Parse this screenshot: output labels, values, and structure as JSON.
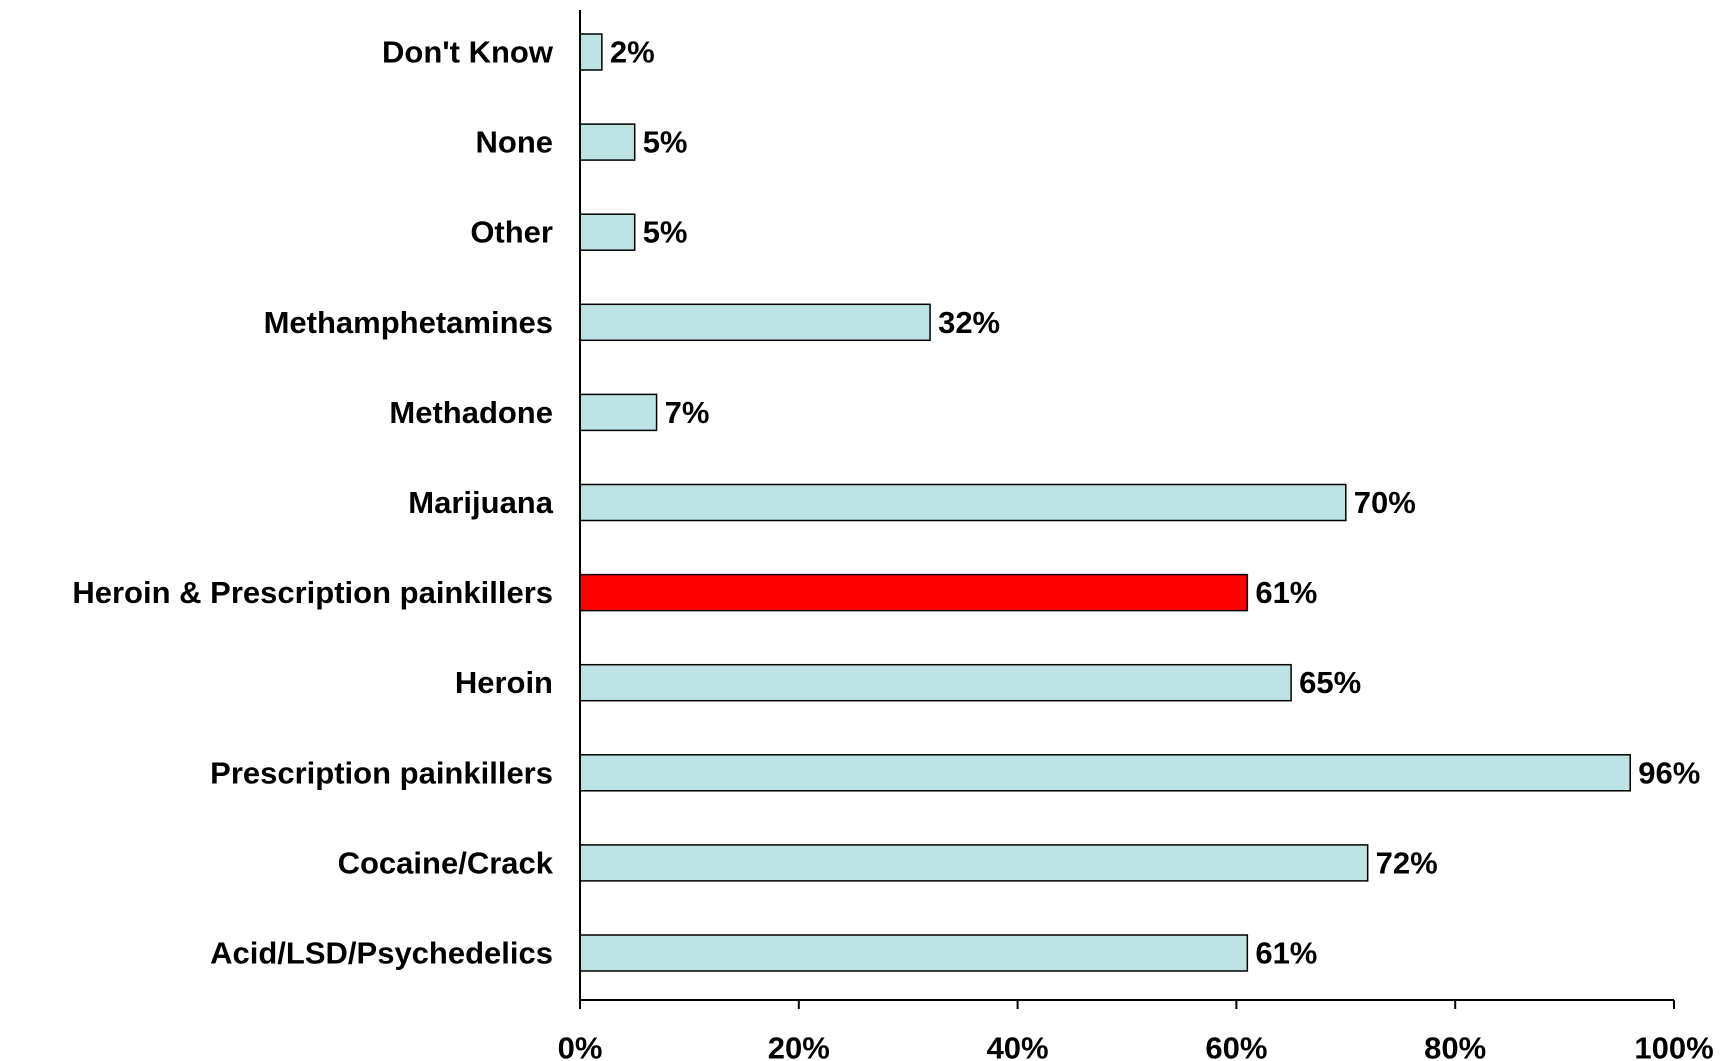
{
  "chart_data": {
    "type": "bar",
    "orientation": "horizontal",
    "title": "",
    "xlabel": "",
    "ylabel": "",
    "categories": [
      "Don't Know",
      "None",
      "Other",
      "Methamphetamines",
      "Methadone",
      "Marijuana",
      "Heroin & Prescription painkillers",
      "Heroin",
      "Prescription painkillers",
      "Cocaine/Crack",
      "Acid/LSD/Psychedelics"
    ],
    "values": [
      2,
      5,
      5,
      32,
      7,
      70,
      61,
      65,
      96,
      72,
      61
    ],
    "value_labels": [
      "2%",
      "5%",
      "5%",
      "32%",
      "7%",
      "70%",
      "61%",
      "65%",
      "96%",
      "72%",
      "61%"
    ],
    "highlight_index": 6,
    "xlim": [
      0,
      100
    ],
    "xticks": [
      0,
      20,
      40,
      60,
      80,
      100
    ],
    "xtick_labels": [
      "0%",
      "20%",
      "40%",
      "60%",
      "80%",
      "100%"
    ],
    "grid": false,
    "legend": "none",
    "colors": {
      "bar": "#bde3e4",
      "highlight": "#ff0000",
      "outline": "#000000"
    }
  }
}
